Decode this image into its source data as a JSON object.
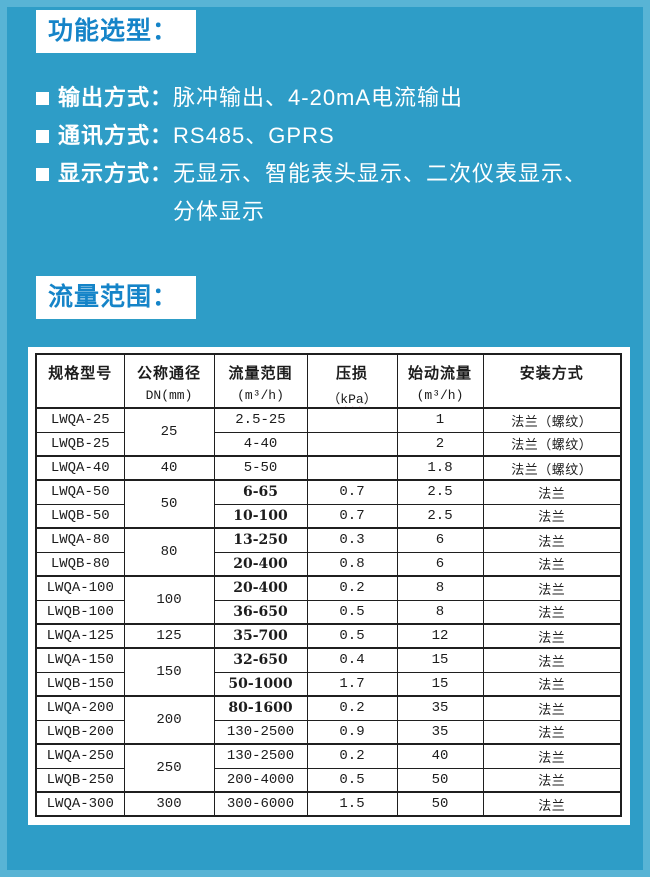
{
  "page": {
    "background_color": "#2e9dc7",
    "edge_color": "#58b4d5",
    "accent_blue": "#1584c8",
    "flow_highlight_color": "#1d1dc9"
  },
  "function_section": {
    "title": "功能选型：",
    "items": [
      {
        "label": "输出方式：",
        "value": "脉冲输出、4-20mA电流输出",
        "value2": ""
      },
      {
        "label": "通讯方式：",
        "value": "RS485、GPRS",
        "value2": ""
      },
      {
        "label": "显示方式：",
        "value": "无显示、智能表头显示、二次仪表显示、",
        "value2": "分体显示"
      }
    ]
  },
  "flow_section": {
    "title": "流量范围："
  },
  "table": {
    "headers": [
      {
        "line1": "规格型号"
      },
      {
        "line1": "公称通径",
        "line2": "DN(mm)"
      },
      {
        "line1": "流量范围",
        "line2": "(m³/h)"
      },
      {
        "line1": "压损",
        "line2_pre": "（",
        "line2_wavy": "kPa",
        "line2_post": "）"
      },
      {
        "line1": "始动流量",
        "line2": "(m³/h)"
      },
      {
        "line1": "安装方式"
      }
    ],
    "rows": [
      {
        "model": "LWQA-25",
        "dn": "25",
        "dn_span": 2,
        "flow": "2.5-25",
        "flow_blue": false,
        "loss": "",
        "start": "1",
        "install": "法兰（螺纹）",
        "group": true
      },
      {
        "model": "LWQB-25",
        "dn": "",
        "dn_span": 0,
        "flow": "4-40",
        "flow_blue": false,
        "loss": "",
        "start": "2",
        "install": "法兰（螺纹）",
        "group": false
      },
      {
        "model": "LWQA-40",
        "dn": "40",
        "dn_span": 1,
        "flow": "5-50",
        "flow_blue": false,
        "loss": "",
        "start": "1.8",
        "install": "法兰（螺纹）",
        "group": true
      },
      {
        "model": "LWQA-50",
        "dn": "50",
        "dn_span": 2,
        "flow": "6-65",
        "flow_blue": true,
        "loss": "0.7",
        "start": "2.5",
        "install": "法兰",
        "group": true
      },
      {
        "model": "LWQB-50",
        "dn": "",
        "dn_span": 0,
        "flow": "10-100",
        "flow_blue": true,
        "loss": "0.7",
        "start": "2.5",
        "install": "法兰",
        "group": false
      },
      {
        "model": "LWQA-80",
        "dn": "80",
        "dn_span": 2,
        "flow": "13-250",
        "flow_blue": true,
        "loss": "0.3",
        "start": "6",
        "install": "法兰",
        "group": true
      },
      {
        "model": "LWQB-80",
        "dn": "",
        "dn_span": 0,
        "flow": "20-400",
        "flow_blue": true,
        "loss": "0.8",
        "start": "6",
        "install": "法兰",
        "group": false
      },
      {
        "model": "LWQA-100",
        "dn": "100",
        "dn_span": 2,
        "flow": "20-400",
        "flow_blue": true,
        "loss": "0.2",
        "start": "8",
        "install": "法兰",
        "group": true
      },
      {
        "model": "LWQB-100",
        "dn": "",
        "dn_span": 0,
        "flow": "36-650",
        "flow_blue": true,
        "loss": "0.5",
        "start": "8",
        "install": "法兰",
        "group": false
      },
      {
        "model": "LWQA-125",
        "dn": "125",
        "dn_span": 1,
        "flow": "35-700",
        "flow_blue": true,
        "loss": "0.5",
        "start": "12",
        "install": "法兰",
        "group": true
      },
      {
        "model": "LWQA-150",
        "dn": "150",
        "dn_span": 2,
        "flow": "32-650",
        "flow_blue": true,
        "loss": "0.4",
        "start": "15",
        "install": "法兰",
        "group": true
      },
      {
        "model": "LWQB-150",
        "dn": "",
        "dn_span": 0,
        "flow": "50-1000",
        "flow_blue": true,
        "loss": "1.7",
        "start": "15",
        "install": "法兰",
        "group": false
      },
      {
        "model": "LWQA-200",
        "dn": "200",
        "dn_span": 2,
        "flow": "80-1600",
        "flow_blue": true,
        "loss": "0.2",
        "start": "35",
        "install": "法兰",
        "group": true
      },
      {
        "model": "LWQB-200",
        "dn": "",
        "dn_span": 0,
        "flow": "130-2500",
        "flow_blue": false,
        "loss": "0.9",
        "start": "35",
        "install": "法兰",
        "group": false
      },
      {
        "model": "LWQA-250",
        "dn": "250",
        "dn_span": 2,
        "flow": "130-2500",
        "flow_blue": false,
        "loss": "0.2",
        "start": "40",
        "install": "法兰",
        "group": true
      },
      {
        "model": "LWQB-250",
        "dn": "",
        "dn_span": 0,
        "flow": "200-4000",
        "flow_blue": false,
        "loss": "0.5",
        "start": "50",
        "install": "法兰",
        "group": false
      },
      {
        "model": "LWQA-300",
        "dn": "300",
        "dn_span": 1,
        "flow": "300-6000",
        "flow_blue": false,
        "loss": "1.5",
        "start": "50",
        "install": "法兰",
        "group": true
      }
    ]
  }
}
